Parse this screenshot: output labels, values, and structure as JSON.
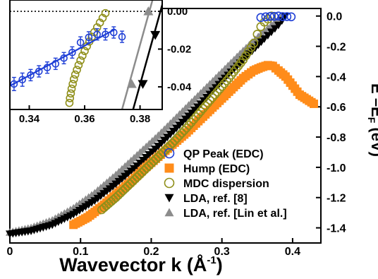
{
  "chart_data": {
    "type": "scatter",
    "xlabel": "Wavevector k (Å",
    "xlabel_exp": "-1",
    "xlabel_tail": ")",
    "ylabel": "E –E",
    "ylabel_sub": "F",
    "ylabel_tail": " (eV)",
    "xlim": [
      0,
      0.44
    ],
    "ylim": [
      -1.5,
      0.05
    ],
    "x_ticks": [
      "0",
      "0.1",
      "0.2",
      "0.3",
      "0.4"
    ],
    "x_tick_values": [
      0,
      0.1,
      0.2,
      0.3,
      0.4
    ],
    "y_ticks": [
      "0.0",
      "-0.2",
      "-0.4",
      "-0.6",
      "-0.8",
      "-1.0",
      "-1.2",
      "-1.4"
    ],
    "y_tick_values": [
      0.0,
      -0.2,
      -0.4,
      -0.6,
      -0.8,
      -1.0,
      -1.2,
      -1.4
    ],
    "legend_position": "bottom-right",
    "series": [
      {
        "name": "QP Peak (EDC)",
        "marker": "open-circle",
        "color": "#1f3fd6",
        "x": [
          0.355,
          0.362,
          0.368,
          0.374,
          0.38,
          0.386,
          0.392,
          0.398
        ],
        "y": [
          -0.01,
          -0.005,
          -0.003,
          -0.002,
          0.0,
          -0.004,
          -0.004,
          -0.005
        ]
      },
      {
        "name": "Hump (EDC)",
        "marker": "filled-square",
        "color": "#ff8c1a",
        "x": [
          0.09,
          0.11,
          0.13,
          0.15,
          0.17,
          0.19,
          0.21,
          0.23,
          0.25,
          0.27,
          0.29,
          0.31,
          0.33,
          0.345,
          0.355,
          0.365,
          0.372,
          0.38,
          0.39,
          0.4,
          0.41,
          0.42,
          0.43
        ],
        "y": [
          -1.38,
          -1.33,
          -1.26,
          -1.18,
          -1.1,
          -1.01,
          -0.93,
          -0.85,
          -0.77,
          -0.68,
          -0.59,
          -0.5,
          -0.41,
          -0.36,
          -0.34,
          -0.325,
          -0.33,
          -0.36,
          -0.4,
          -0.46,
          -0.52,
          -0.55,
          -0.58
        ]
      },
      {
        "name": "MDC dispersion",
        "marker": "open-circle",
        "color": "#8f8f1a",
        "x": [
          0.13,
          0.15,
          0.17,
          0.19,
          0.21,
          0.23,
          0.25,
          0.27,
          0.29,
          0.31,
          0.33,
          0.345,
          0.35,
          0.355,
          0.36,
          0.365,
          0.37
        ],
        "y": [
          -1.28,
          -1.2,
          -1.11,
          -1.02,
          -0.93,
          -0.84,
          -0.74,
          -0.63,
          -0.52,
          -0.41,
          -0.29,
          -0.18,
          -0.12,
          -0.07,
          -0.04,
          -0.02,
          0.0
        ]
      },
      {
        "name": "LDA, ref. [8]",
        "marker": "filled-triangle-down",
        "color": "#000000",
        "x": [
          0.0,
          0.03,
          0.06,
          0.09,
          0.12,
          0.15,
          0.18,
          0.21,
          0.24,
          0.27,
          0.3,
          0.33,
          0.36,
          0.38,
          0.39
        ],
        "y": [
          -1.44,
          -1.42,
          -1.38,
          -1.31,
          -1.22,
          -1.11,
          -0.99,
          -0.86,
          -0.72,
          -0.58,
          -0.43,
          -0.29,
          -0.15,
          -0.06,
          0.0
        ]
      },
      {
        "name": "LDA, ref. [Lin et al.]",
        "marker": "filled-triangle-up",
        "color": "#8c8c8c",
        "x": [
          0.0,
          0.03,
          0.06,
          0.09,
          0.12,
          0.15,
          0.18,
          0.21,
          0.24,
          0.27,
          0.3,
          0.33,
          0.36,
          0.375,
          0.385
        ],
        "y": [
          -1.43,
          -1.4,
          -1.35,
          -1.27,
          -1.17,
          -1.05,
          -0.92,
          -0.79,
          -0.65,
          -0.51,
          -0.37,
          -0.23,
          -0.1,
          -0.04,
          0.0
        ]
      }
    ],
    "inset": {
      "xlim": [
        0.333,
        0.388
      ],
      "ylim": [
        -0.052,
        0.006
      ],
      "x_ticks": [
        "0.34",
        "0.36",
        "0.38"
      ],
      "x_tick_values": [
        0.34,
        0.36,
        0.38
      ],
      "y_ticks": [
        "0.00",
        "-0.02",
        "-0.04"
      ],
      "y_tick_values": [
        0.0,
        -0.02,
        -0.04
      ],
      "reference_line_y": 0.0,
      "qp_points": {
        "x": [
          0.3345,
          0.3375,
          0.3405,
          0.3435,
          0.3465,
          0.3495,
          0.3525,
          0.3555,
          0.3585,
          0.3615,
          0.3645,
          0.3675,
          0.3705,
          0.3735
        ],
        "y": [
          -0.0385,
          -0.0362,
          -0.0338,
          -0.0318,
          -0.0298,
          -0.0278,
          -0.0248,
          -0.0218,
          -0.0165,
          -0.0138,
          -0.0122,
          -0.0122,
          -0.0112,
          -0.0135
        ],
        "err": [
          0.0035,
          0.0035,
          0.003,
          0.003,
          0.003,
          0.003,
          0.003,
          0.003,
          0.003,
          0.003,
          0.003,
          0.003,
          0.003,
          0.003
        ]
      },
      "qp_fit_line": {
        "x": [
          0.333,
          0.371
        ],
        "y": [
          -0.0395,
          -0.0095
        ],
        "color": "#1f3fd6"
      },
      "mdc_points": {
        "x": [
          0.3545,
          0.3547,
          0.355,
          0.3553,
          0.3557,
          0.3561,
          0.3566,
          0.3572,
          0.3578,
          0.3585,
          0.3592,
          0.36,
          0.3608,
          0.3617,
          0.3626,
          0.3635,
          0.3645,
          0.3655,
          0.3665,
          0.3675
        ],
        "y": [
          -0.0485,
          -0.046,
          -0.0435,
          -0.041,
          -0.0385,
          -0.036,
          -0.0335,
          -0.031,
          -0.0285,
          -0.026,
          -0.0235,
          -0.021,
          -0.0185,
          -0.016,
          -0.0135,
          -0.011,
          -0.0085,
          -0.006,
          -0.0035,
          -0.001
        ]
      },
      "lda8_line": {
        "x": [
          0.3775,
          0.3885
        ],
        "y": [
          -0.052,
          0.006
        ],
        "marker_x": [
          0.381,
          0.3855
        ],
        "marker_y": [
          -0.0385,
          -0.0125
        ]
      },
      "lin_line": {
        "x": [
          0.3735,
          0.3845
        ],
        "y": [
          -0.052,
          0.006
        ],
        "marker_x": [
          0.377,
          0.383
        ],
        "marker_y": [
          -0.0385,
          0.0
        ]
      }
    }
  }
}
